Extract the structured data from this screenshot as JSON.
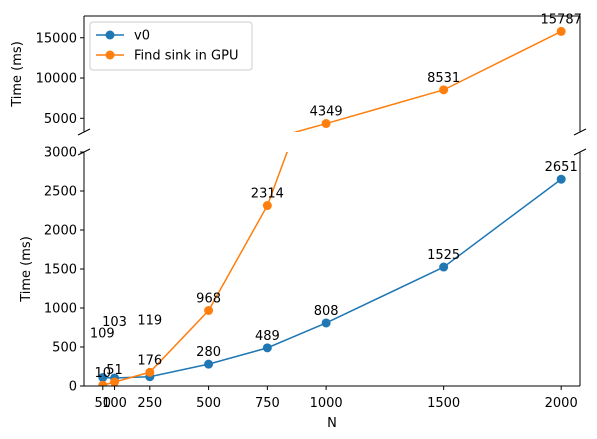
{
  "chart_data": {
    "type": "line",
    "broken_y_axis": true,
    "x": [
      50,
      100,
      250,
      500,
      750,
      1000,
      1500,
      2000
    ],
    "x_ticks": [
      "50",
      "100",
      "250",
      "500",
      "750",
      "1000",
      "1500",
      "2000"
    ],
    "xlabel": "N",
    "ylabel": "Time (ms)",
    "xlim": [
      -30,
      2080
    ],
    "upper_axis": {
      "ylabel": "Time (ms)",
      "ylim": [
        3300,
        17700
      ],
      "ticks": [
        "5000",
        "10000",
        "15000"
      ],
      "tick_values": [
        5000,
        10000,
        15000
      ]
    },
    "lower_axis": {
      "ylabel": "Time (ms)",
      "ylim": [
        0,
        3000
      ],
      "ticks": [
        "0",
        "500",
        "1000",
        "1500",
        "2000",
        "2500",
        "3000"
      ],
      "tick_values": [
        0,
        500,
        1000,
        1500,
        2000,
        2500,
        3000
      ]
    },
    "legend_position": "top-left",
    "series": [
      {
        "name": "v0",
        "color": "#1f77b4",
        "values": [
          109,
          103,
          119,
          280,
          489,
          808,
          1525,
          2651
        ],
        "labels": [
          "109",
          "103",
          "119",
          "280",
          "489",
          "808",
          "1525",
          "2651"
        ]
      },
      {
        "name": "Find sink in GPU",
        "color": "#ff7f0e",
        "values": [
          10,
          51,
          176,
          968,
          2314,
          4349,
          8531,
          15787
        ],
        "labels": [
          "10",
          "51",
          "176",
          "968",
          "2314",
          "4349",
          "8531",
          "15787"
        ]
      }
    ]
  }
}
